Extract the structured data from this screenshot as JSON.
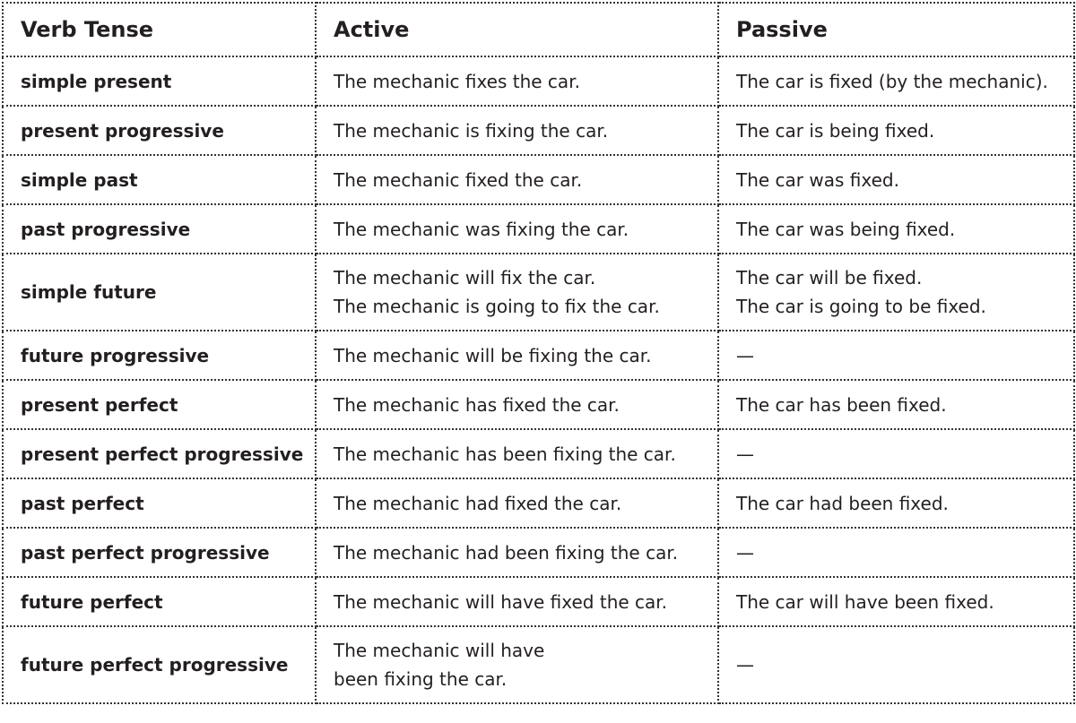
{
  "headers": [
    "Verb Tense",
    "Active",
    "Passive"
  ],
  "rows": [
    {
      "tense": "simple present",
      "active": [
        "The mechanic fixes the car."
      ],
      "passive": [
        "The car is fixed (by the mechanic)."
      ]
    },
    {
      "tense": "present progressive",
      "active": [
        "The mechanic is fixing the car."
      ],
      "passive": [
        "The car is being fixed."
      ]
    },
    {
      "tense": "simple past",
      "active": [
        "The mechanic fixed the car."
      ],
      "passive": [
        "The car was fixed."
      ]
    },
    {
      "tense": "past progressive",
      "active": [
        "The mechanic was fixing the car."
      ],
      "passive": [
        "The car was being fixed."
      ]
    },
    {
      "tense": "simple future",
      "active": [
        "The mechanic will fix the car.",
        "The mechanic is going to fix the car."
      ],
      "passive": [
        "The car will be fixed.",
        "The car is going to be fixed."
      ]
    },
    {
      "tense": "future progressive",
      "active": [
        "The mechanic will be fixing the car."
      ],
      "passive": [
        "—"
      ]
    },
    {
      "tense": "present perfect",
      "active": [
        "The mechanic has fixed the car."
      ],
      "passive": [
        "The car has been fixed."
      ]
    },
    {
      "tense": "present perfect progressive",
      "active": [
        "The mechanic has been fixing the car."
      ],
      "passive": [
        "—"
      ]
    },
    {
      "tense": "past perfect",
      "active": [
        "The mechanic had fixed the car."
      ],
      "passive": [
        "The car had been fixed."
      ]
    },
    {
      "tense": "past perfect progressive",
      "active": [
        "The mechanic had been fixing the car."
      ],
      "passive": [
        "—"
      ]
    },
    {
      "tense": "future perfect",
      "active": [
        "The mechanic will have fixed the car."
      ],
      "passive": [
        "The car will have been fixed."
      ]
    },
    {
      "tense": "future perfect progressive",
      "active": [
        "The mechanic will have",
        "been fixing the car."
      ],
      "passive": [
        "—"
      ]
    }
  ]
}
